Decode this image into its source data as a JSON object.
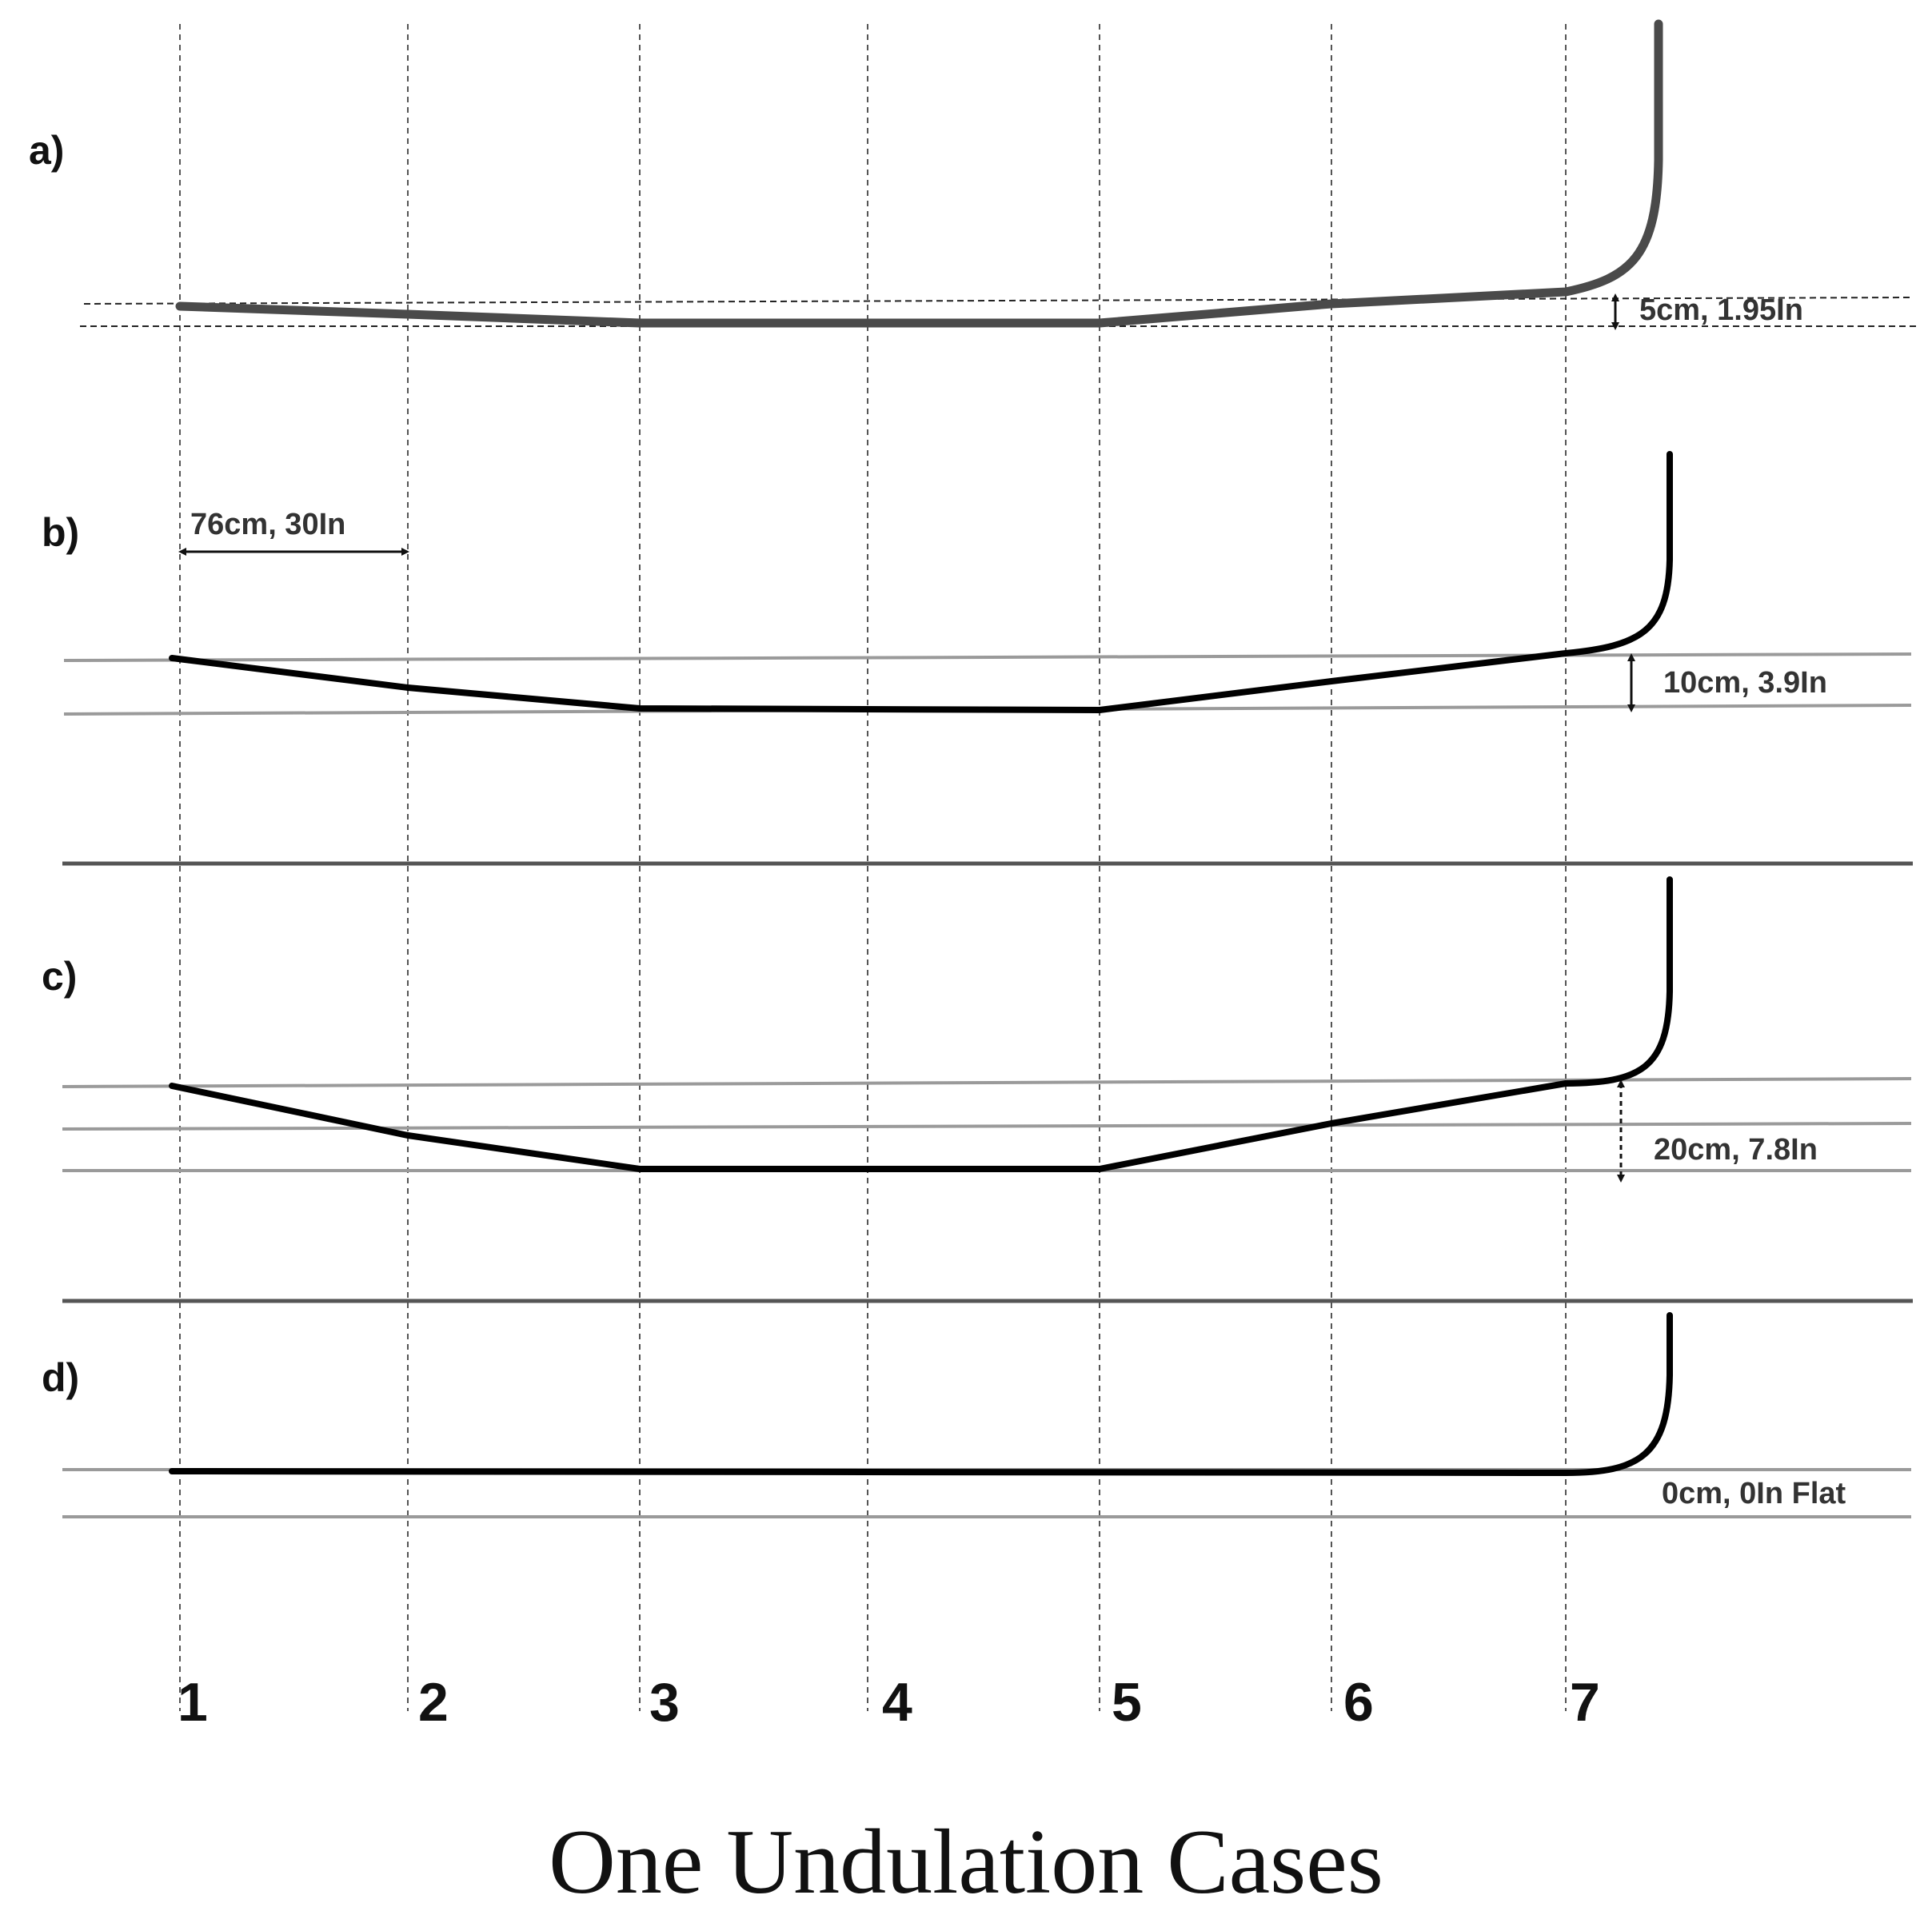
{
  "title": "One Undulation Cases",
  "columns": [
    "1",
    "2",
    "3",
    "4",
    "5",
    "6",
    "7"
  ],
  "spacing_label": "76cm, 30In",
  "panels": [
    {
      "label": "a)",
      "depth_label": "5cm, 1.95In",
      "color": "#4a4a4a"
    },
    {
      "label": "b)",
      "depth_label": "10cm, 3.9In",
      "color": "#000000"
    },
    {
      "label": "c)",
      "depth_label": "20cm, 7.8In",
      "color": "#000000"
    },
    {
      "label": "d)",
      "depth_label": "0cm, 0In Flat",
      "color": "#000000"
    }
  ]
}
